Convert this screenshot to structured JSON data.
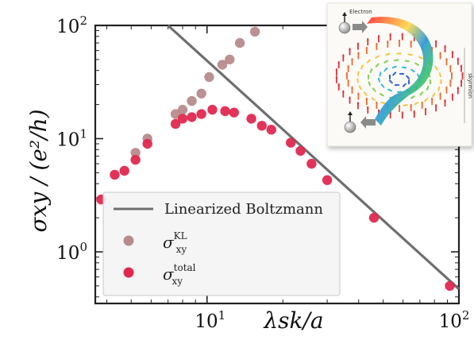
{
  "chart_data": {
    "type": "scatter",
    "xscale": "log",
    "yscale": "log",
    "xlim": [
      3.6,
      100
    ],
    "ylim": [
      0.35,
      100
    ],
    "xlabel": "λsk/a",
    "ylabel": "σxy / (e²/h)",
    "x_ticks": [
      {
        "base": "10",
        "exp": "1",
        "value": 10
      },
      {
        "base": "10",
        "exp": "2",
        "value": 100
      }
    ],
    "y_ticks": [
      {
        "base": "10",
        "exp": "0",
        "value": 1
      },
      {
        "base": "10",
        "exp": "1",
        "value": 10
      },
      {
        "base": "10",
        "exp": "2",
        "value": 100
      }
    ],
    "legend": {
      "placement": "lower-left",
      "line_label": "Linearized Boltzmann",
      "kl_symbol": "σ",
      "kl_sub": "xy",
      "kl_sup": "KL",
      "total_symbol": "σ",
      "total_sub": "xy",
      "total_sup": "total"
    },
    "line": {
      "x": [
        7.0,
        100
      ],
      "y": [
        100,
        0.47
      ]
    },
    "series": [
      {
        "key": "kl",
        "color": "#b88b8b",
        "x": [
          5.2,
          5.8,
          7.5,
          8.0,
          8.7,
          9.5,
          10.2,
          11.5,
          12.3,
          13.5,
          15.5
        ],
        "y": [
          7.5,
          10.0,
          16.5,
          18.0,
          21.5,
          25.0,
          35.0,
          45.0,
          50.0,
          70.0,
          88.0
        ]
      },
      {
        "key": "total",
        "color": "#e0284f",
        "x": [
          3.8,
          4.3,
          4.7,
          5.2,
          5.8,
          7.5,
          8.0,
          8.7,
          9.5,
          10.5,
          11.8,
          12.8,
          15.0,
          16.5,
          18.0,
          21.5,
          23.5,
          26.0,
          30.0,
          46.0,
          92.0
        ],
        "y": [
          2.9,
          4.8,
          5.2,
          6.5,
          9.0,
          13.5,
          15.0,
          15.5,
          16.5,
          18.0,
          17.5,
          17.0,
          15.0,
          13.0,
          12.0,
          9.2,
          7.8,
          6.0,
          4.3,
          2.0,
          0.5
        ]
      }
    ]
  },
  "inset": {
    "electron_label": "Electron",
    "side_label": "skyrmion"
  }
}
